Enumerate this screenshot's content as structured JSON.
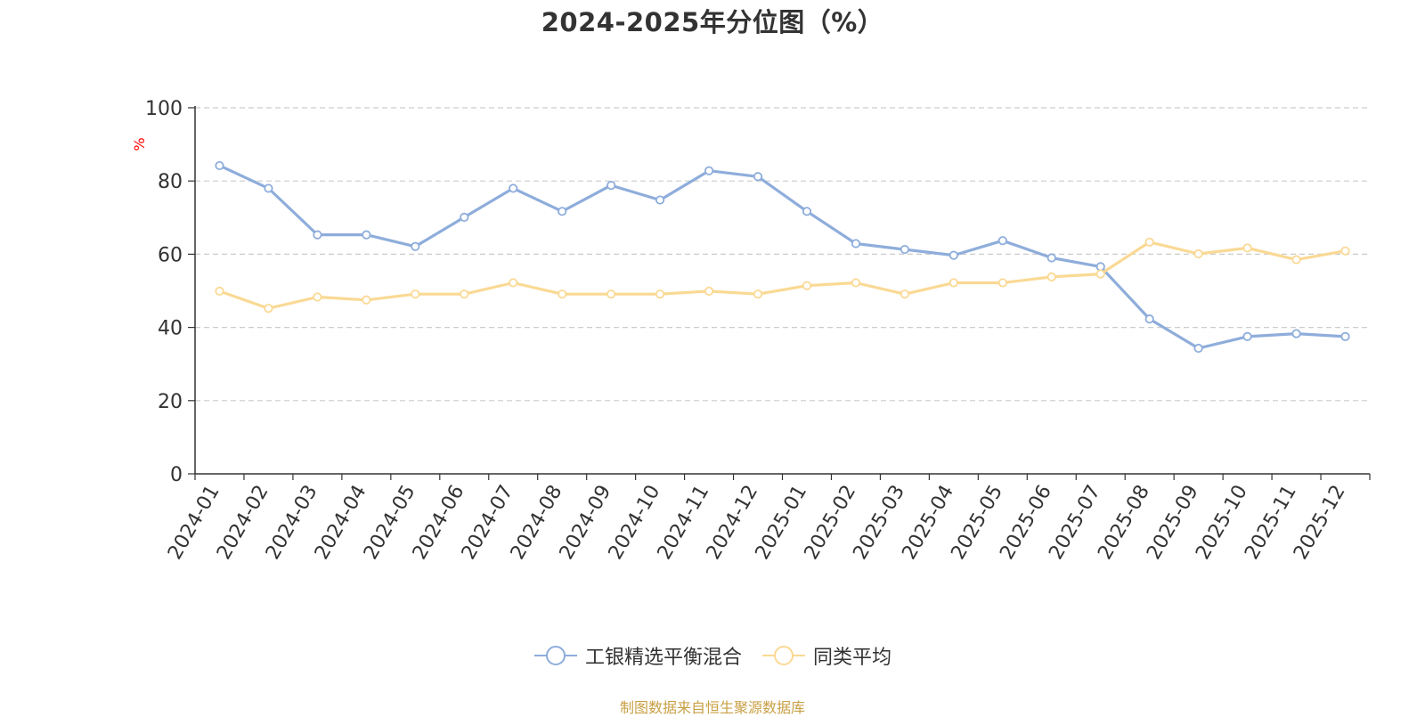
{
  "chart_data": {
    "type": "line",
    "title": "2024-2025年分位图（%）",
    "ylabel": "%",
    "xlabel": "",
    "ylim": [
      0,
      100
    ],
    "yticks": [
      0,
      20,
      40,
      60,
      80,
      100
    ],
    "grid": true,
    "legend_position": "bottom",
    "categories": [
      "2024-01",
      "2024-02",
      "2024-03",
      "2024-04",
      "2024-05",
      "2024-06",
      "2024-07",
      "2024-08",
      "2024-09",
      "2024-10",
      "2024-11",
      "2024-12",
      "2025-01",
      "2025-02",
      "2025-03",
      "2025-04",
      "2025-05",
      "2025-06",
      "2025-07",
      "2025-08",
      "2025-09",
      "2025-10",
      "2025-11",
      "2025-12"
    ],
    "series": [
      {
        "name": "工银精选平衡混合",
        "color": "#8eaddb",
        "values": [
          84.2,
          78.0,
          65.3,
          65.3,
          62.1,
          70.1,
          78.0,
          71.7,
          78.8,
          74.8,
          82.8,
          81.2,
          71.7,
          62.9,
          61.3,
          59.7,
          63.7,
          59.0,
          56.6,
          42.3,
          34.3,
          37.5,
          38.3,
          37.5
        ]
      },
      {
        "name": "同类平均",
        "color": "#fad994",
        "values": [
          49.9,
          45.2,
          48.3,
          47.5,
          49.1,
          49.1,
          52.2,
          49.1,
          49.1,
          49.1,
          49.9,
          49.1,
          51.4,
          52.2,
          49.1,
          52.2,
          52.2,
          53.8,
          54.6,
          63.3,
          60.1,
          61.7,
          58.5,
          60.9
        ]
      }
    ]
  },
  "source_note": "制图数据来自恒生聚源数据库",
  "colors": {
    "axis": "#333333",
    "grid": "#cccccc",
    "ylabel": "#ff0000",
    "source": "#c8a045"
  }
}
